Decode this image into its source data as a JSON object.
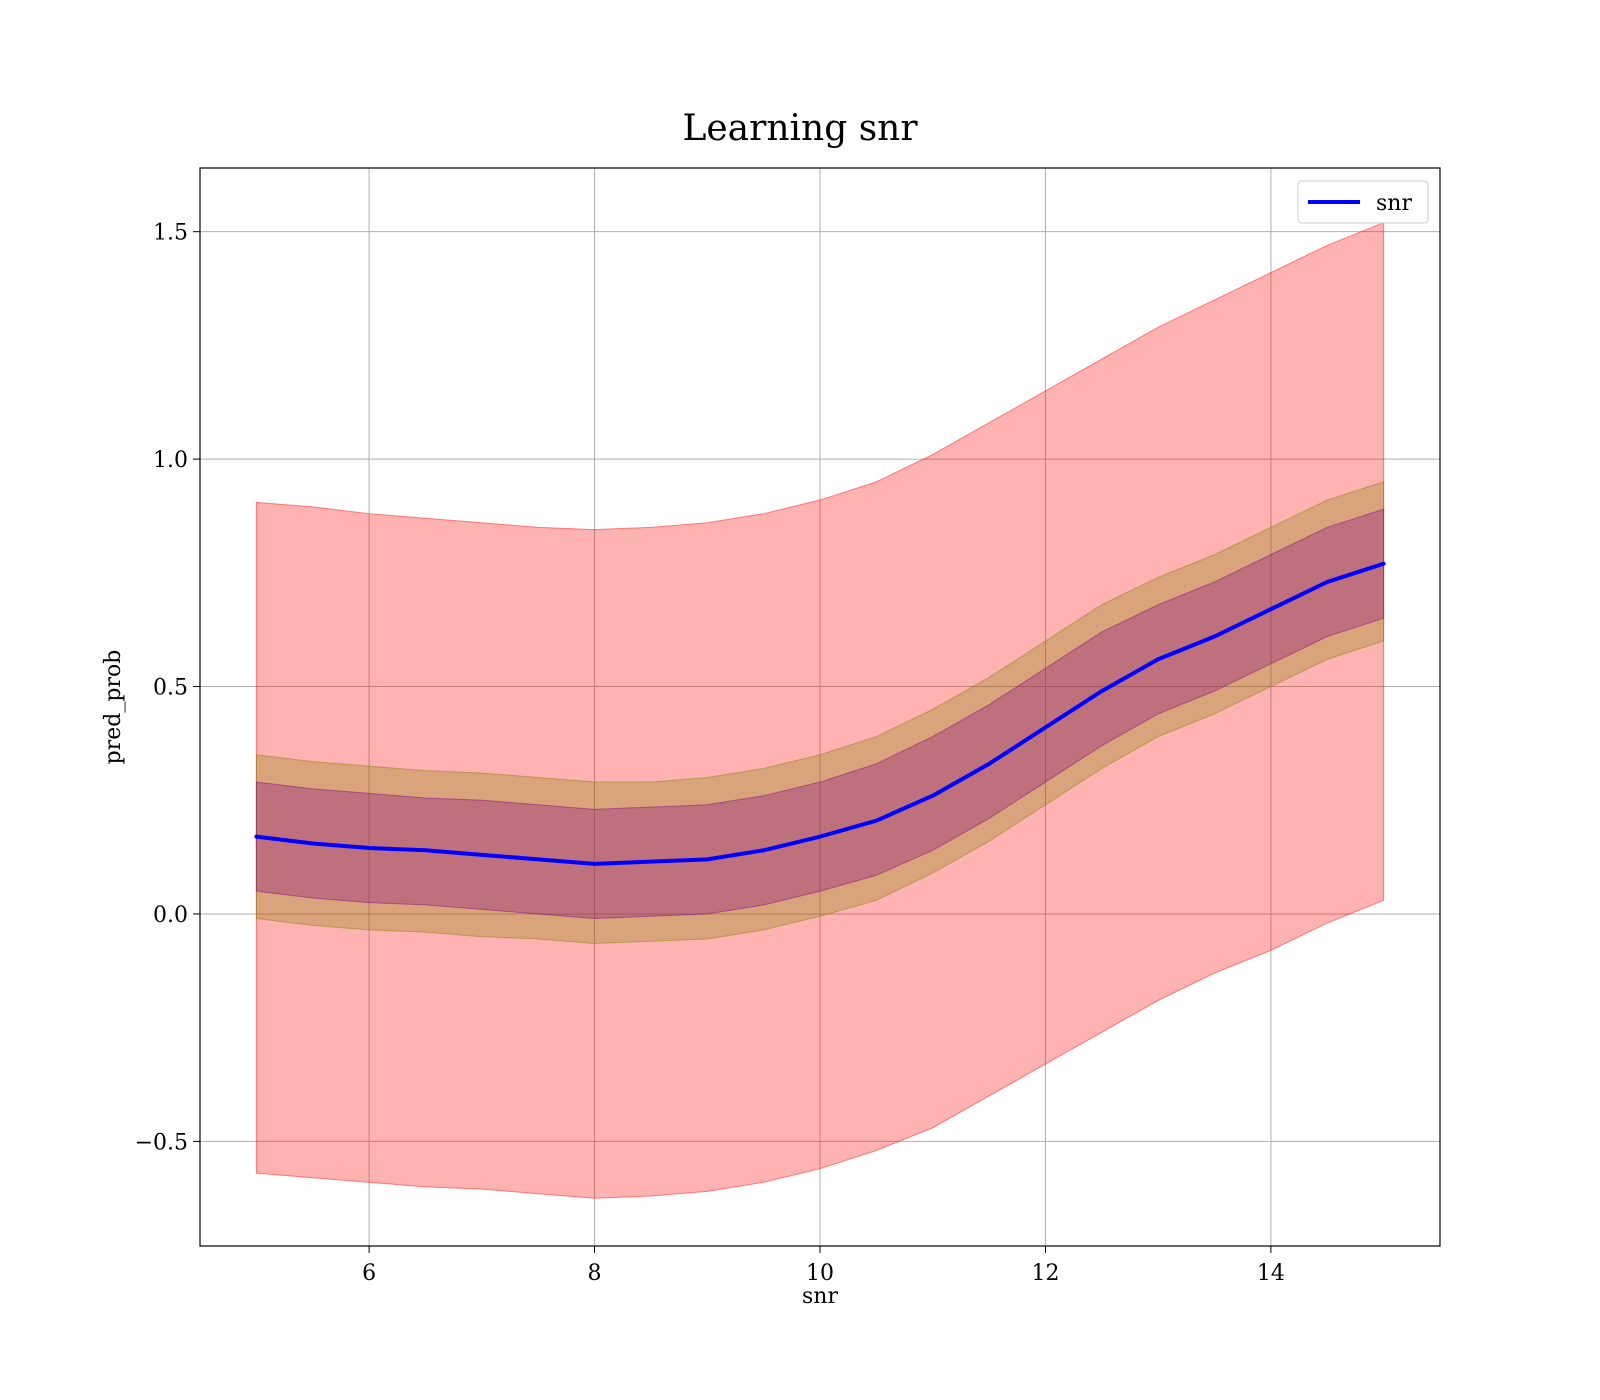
{
  "chart_data": {
    "type": "line",
    "title": "Learning snr",
    "xlabel": "snr",
    "ylabel": "pred_prob",
    "xlim": [
      4.5,
      15.5
    ],
    "ylim": [
      -0.73,
      1.64
    ],
    "x_ticks": [
      6,
      8,
      10,
      12,
      14
    ],
    "x_tick_labels": [
      "6",
      "8",
      "10",
      "12",
      "14"
    ],
    "y_ticks": [
      -0.5,
      0.0,
      0.5,
      1.0,
      1.5
    ],
    "y_tick_labels": [
      "−0.5",
      "0.0",
      "0.5",
      "1.0",
      "1.5"
    ],
    "grid": true,
    "legend": {
      "position": "top-right",
      "entries": [
        "snr"
      ]
    },
    "x": [
      5,
      5.5,
      6,
      6.5,
      7,
      7.5,
      8,
      8.5,
      9,
      9.5,
      10,
      10.5,
      11,
      11.5,
      12,
      12.5,
      13,
      13.5,
      14,
      14.5,
      15
    ],
    "series": [
      {
        "name": "snr",
        "color": "#0000ff",
        "values": [
          0.17,
          0.155,
          0.145,
          0.14,
          0.13,
          0.12,
          0.11,
          0.115,
          0.12,
          0.14,
          0.17,
          0.205,
          0.26,
          0.33,
          0.41,
          0.49,
          0.56,
          0.61,
          0.67,
          0.73,
          0.77
        ]
      }
    ],
    "bands": [
      {
        "color": "#ff0000",
        "opacity": 0.3,
        "lower": [
          -0.57,
          -0.58,
          -0.59,
          -0.6,
          -0.605,
          -0.615,
          -0.625,
          -0.62,
          -0.61,
          -0.59,
          -0.56,
          -0.52,
          -0.47,
          -0.4,
          -0.33,
          -0.26,
          -0.19,
          -0.13,
          -0.08,
          -0.02,
          0.03
        ],
        "upper": [
          0.905,
          0.895,
          0.88,
          0.87,
          0.86,
          0.85,
          0.845,
          0.85,
          0.86,
          0.88,
          0.91,
          0.95,
          1.01,
          1.08,
          1.15,
          1.22,
          1.29,
          1.35,
          1.41,
          1.47,
          1.52
        ]
      },
      {
        "color": "#808000",
        "opacity": 0.3,
        "lower": [
          -0.01,
          -0.025,
          -0.035,
          -0.04,
          -0.05,
          -0.055,
          -0.065,
          -0.06,
          -0.055,
          -0.035,
          -0.005,
          0.03,
          0.09,
          0.16,
          0.24,
          0.32,
          0.39,
          0.44,
          0.5,
          0.56,
          0.6
        ],
        "upper": [
          0.35,
          0.335,
          0.325,
          0.315,
          0.31,
          0.3,
          0.29,
          0.29,
          0.3,
          0.32,
          0.35,
          0.39,
          0.45,
          0.52,
          0.6,
          0.68,
          0.74,
          0.79,
          0.85,
          0.91,
          0.95
        ]
      },
      {
        "color": "#800080",
        "opacity": 0.3,
        "lower": [
          0.05,
          0.035,
          0.025,
          0.02,
          0.01,
          0.0,
          -0.01,
          -0.005,
          0.0,
          0.02,
          0.05,
          0.085,
          0.14,
          0.21,
          0.29,
          0.37,
          0.44,
          0.49,
          0.55,
          0.61,
          0.65
        ],
        "upper": [
          0.29,
          0.275,
          0.265,
          0.255,
          0.25,
          0.24,
          0.23,
          0.235,
          0.24,
          0.26,
          0.29,
          0.33,
          0.39,
          0.46,
          0.54,
          0.62,
          0.68,
          0.73,
          0.79,
          0.85,
          0.89
        ]
      }
    ]
  }
}
